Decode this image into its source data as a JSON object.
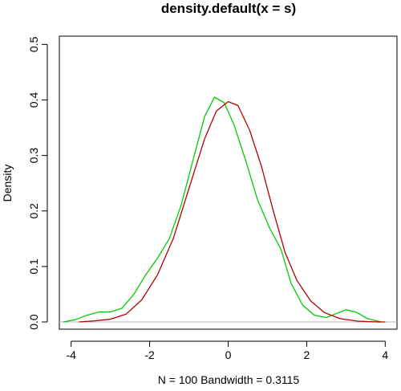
{
  "chart_data": {
    "type": "line",
    "title": "density.default(x = s)",
    "xlabel": "N = 100   Bandwidth = 0.3115",
    "ylabel": "Density",
    "xlim": [
      -4.3,
      4.3
    ],
    "ylim": [
      -0.013,
      0.515
    ],
    "x_ticks": [
      -4,
      -2,
      0,
      2,
      4
    ],
    "x_tick_labels": [
      "-4",
      "-2",
      "0",
      "2",
      "4"
    ],
    "y_ticks": [
      0.0,
      0.1,
      0.2,
      0.3,
      0.4,
      0.5
    ],
    "y_tick_labels": [
      "0.0",
      "0.1",
      "0.2",
      "0.3",
      "0.4",
      "0.5"
    ],
    "grid": false,
    "baseline": {
      "y": 0,
      "color": "#b4b4b4"
    },
    "series": [
      {
        "color": "#00cd00",
        "points": [
          [
            -4.2,
            0.0
          ],
          [
            -3.9,
            0.004
          ],
          [
            -3.6,
            0.012
          ],
          [
            -3.3,
            0.018
          ],
          [
            -3.0,
            0.018
          ],
          [
            -2.7,
            0.025
          ],
          [
            -2.4,
            0.05
          ],
          [
            -2.1,
            0.085
          ],
          [
            -1.8,
            0.115
          ],
          [
            -1.5,
            0.15
          ],
          [
            -1.2,
            0.21
          ],
          [
            -0.9,
            0.29
          ],
          [
            -0.6,
            0.37
          ],
          [
            -0.35,
            0.405
          ],
          [
            -0.1,
            0.395
          ],
          [
            0.15,
            0.355
          ],
          [
            0.45,
            0.29
          ],
          [
            0.75,
            0.22
          ],
          [
            1.05,
            0.17
          ],
          [
            1.35,
            0.13
          ],
          [
            1.6,
            0.07
          ],
          [
            1.9,
            0.03
          ],
          [
            2.2,
            0.012
          ],
          [
            2.5,
            0.008
          ],
          [
            2.75,
            0.015
          ],
          [
            3.0,
            0.022
          ],
          [
            3.25,
            0.018
          ],
          [
            3.55,
            0.006
          ],
          [
            3.9,
            0.0
          ]
        ]
      },
      {
        "color": "#b20000",
        "points": [
          [
            -3.8,
            0.0
          ],
          [
            -3.4,
            0.002
          ],
          [
            -3.0,
            0.005
          ],
          [
            -2.6,
            0.014
          ],
          [
            -2.2,
            0.04
          ],
          [
            -1.8,
            0.085
          ],
          [
            -1.4,
            0.15
          ],
          [
            -1.0,
            0.24
          ],
          [
            -0.6,
            0.33
          ],
          [
            -0.3,
            0.38
          ],
          [
            0.0,
            0.397
          ],
          [
            0.25,
            0.39
          ],
          [
            0.55,
            0.345
          ],
          [
            0.85,
            0.28
          ],
          [
            1.15,
            0.2
          ],
          [
            1.45,
            0.125
          ],
          [
            1.75,
            0.075
          ],
          [
            2.1,
            0.038
          ],
          [
            2.45,
            0.017
          ],
          [
            2.85,
            0.006
          ],
          [
            3.3,
            0.0015
          ],
          [
            3.8,
            0.0
          ],
          [
            4.0,
            0.0
          ]
        ]
      }
    ]
  }
}
